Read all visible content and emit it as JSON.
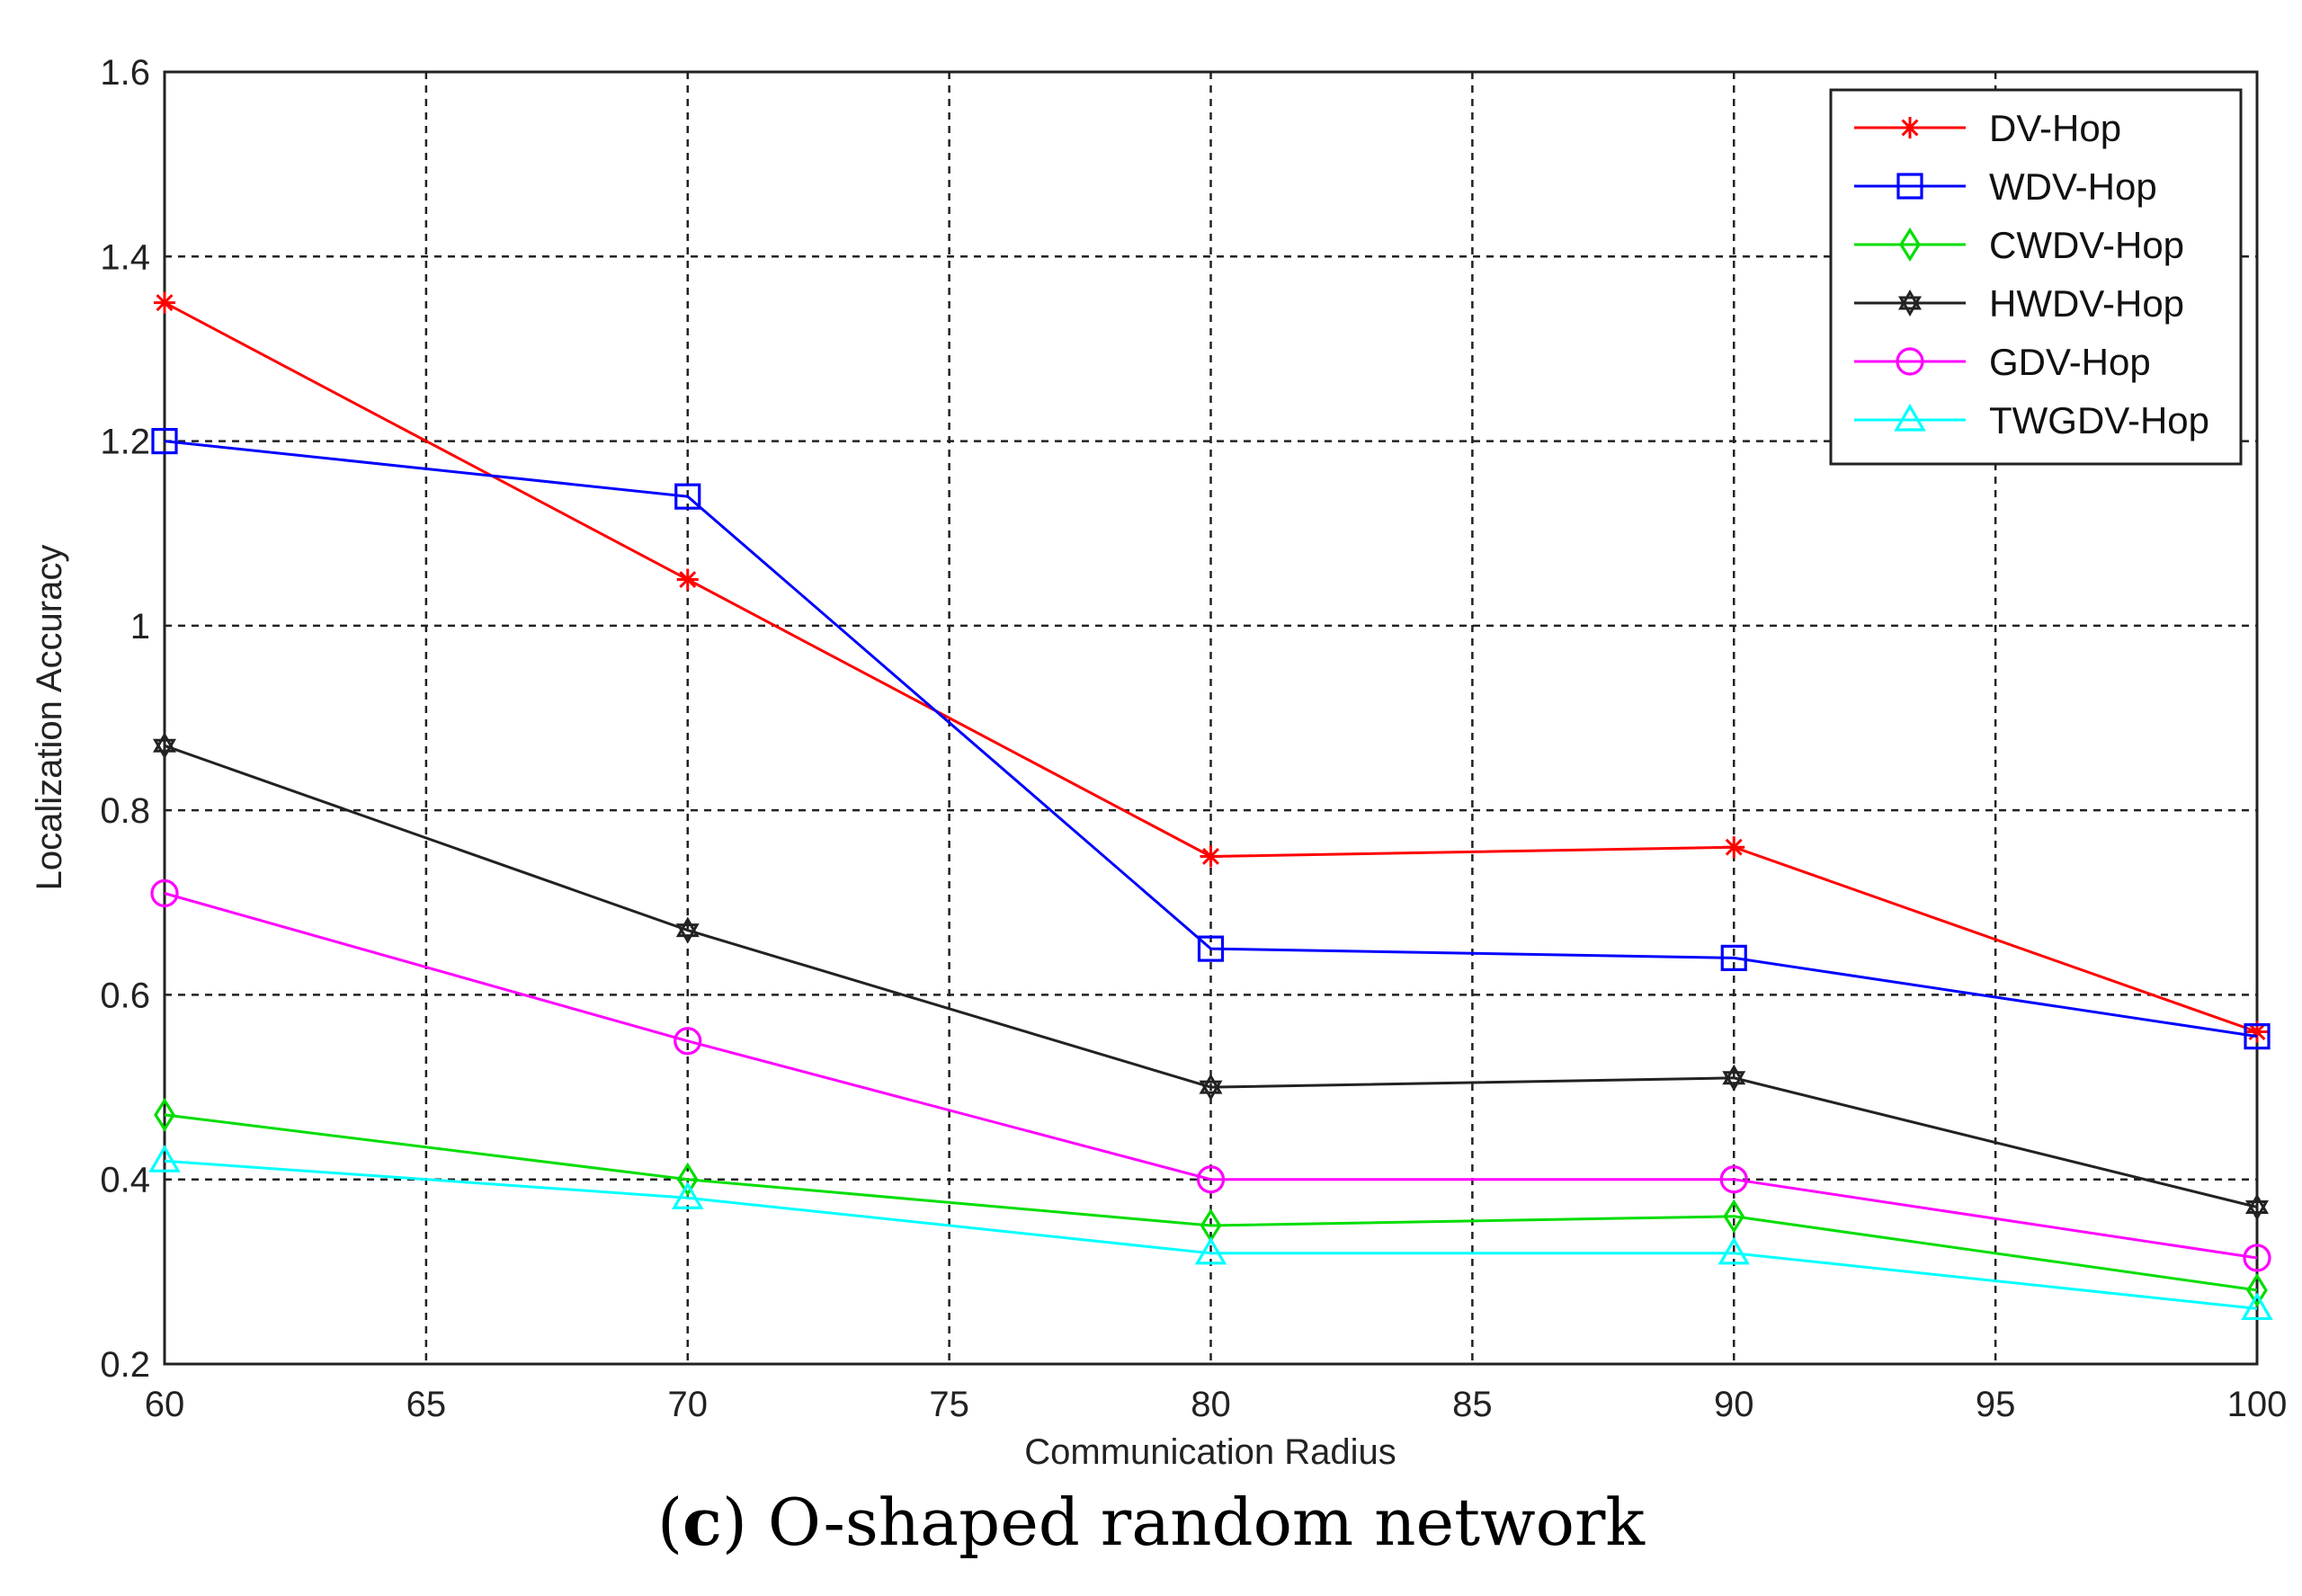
{
  "chart_data": {
    "type": "line",
    "title": "",
    "xlabel": "Communication Radius",
    "ylabel": "Localization Accuracy",
    "xlim": [
      60,
      100
    ],
    "ylim": [
      0.2,
      1.6
    ],
    "xticks": [
      "60",
      "65",
      "70",
      "75",
      "80",
      "85",
      "90",
      "95",
      "100"
    ],
    "yticks": [
      "0.2",
      "0.4",
      "0.6",
      "0.8",
      "1",
      "1.2",
      "1.4",
      "1.6"
    ],
    "grid": true,
    "legend_position": "top-right",
    "x": [
      60,
      70,
      80,
      90,
      100
    ],
    "series": [
      {
        "name": "DV-Hop",
        "color": "#ff0000",
        "marker": "star",
        "values": [
          1.35,
          1.05,
          0.75,
          0.76,
          0.56
        ]
      },
      {
        "name": "WDV-Hop",
        "color": "#0000ff",
        "marker": "square",
        "values": [
          1.2,
          1.14,
          0.65,
          0.64,
          0.555
        ]
      },
      {
        "name": "CWDV-Hop",
        "color": "#00dd00",
        "marker": "diamond",
        "values": [
          0.47,
          0.4,
          0.35,
          0.36,
          0.28
        ]
      },
      {
        "name": "HWDV-Hop",
        "color": "#222222",
        "marker": "hexagram",
        "values": [
          0.87,
          0.67,
          0.5,
          0.51,
          0.37
        ]
      },
      {
        "name": "GDV-Hop",
        "color": "#ff00ff",
        "marker": "circle",
        "values": [
          0.71,
          0.55,
          0.4,
          0.4,
          0.315
        ]
      },
      {
        "name": "TWGDV-Hop",
        "color": "#00ffff",
        "marker": "triangle",
        "values": [
          0.42,
          0.38,
          0.32,
          0.32,
          0.26
        ]
      }
    ]
  },
  "caption": {
    "open": "(",
    "letter": "c",
    "close": ") O-shaped random network"
  }
}
